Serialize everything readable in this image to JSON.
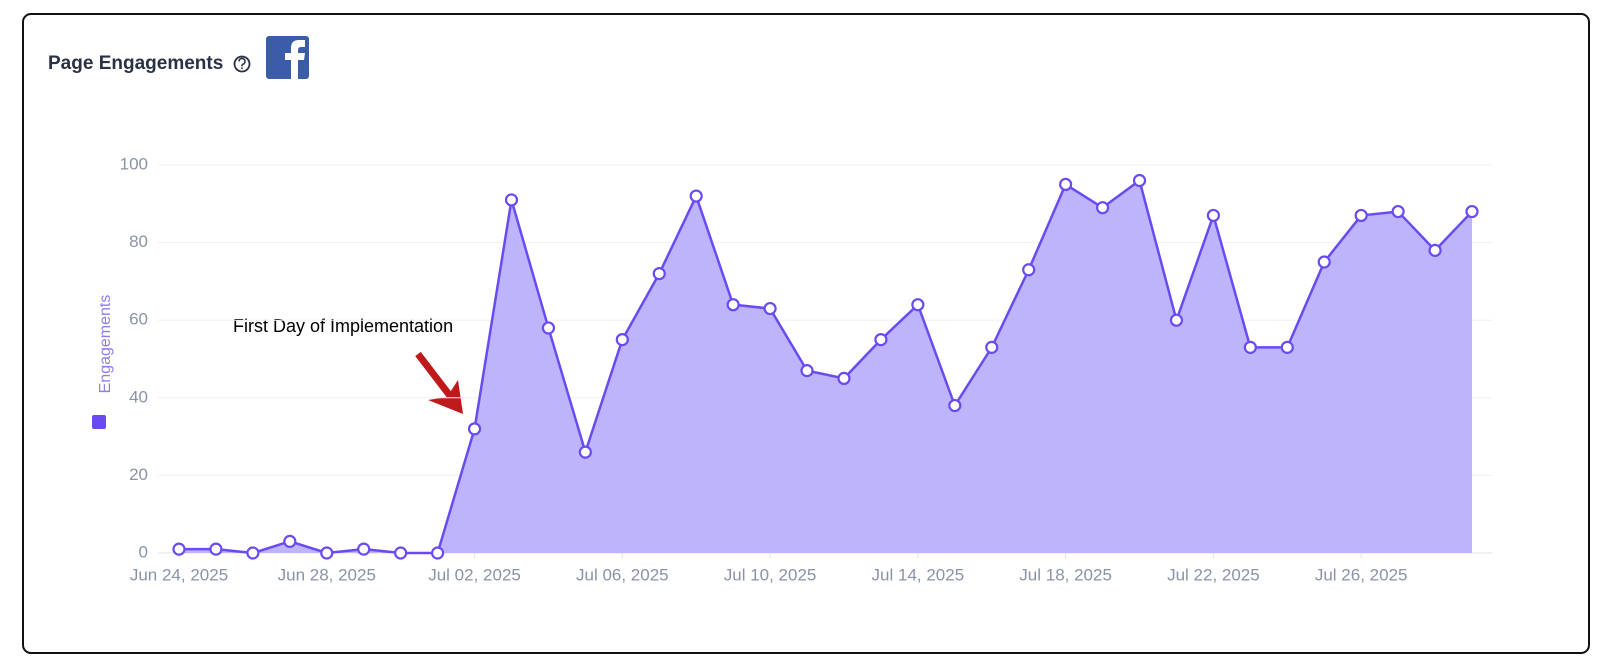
{
  "chart_data": {
    "type": "area",
    "title": "Page Engagements",
    "y_label": "Engagements",
    "annotation": "First Day of Implementation",
    "x": [
      "2025-06-24",
      "2025-06-25",
      "2025-06-26",
      "2025-06-27",
      "2025-06-28",
      "2025-06-29",
      "2025-06-30",
      "2025-07-01",
      "2025-07-02",
      "2025-07-03",
      "2025-07-04",
      "2025-07-05",
      "2025-07-06",
      "2025-07-07",
      "2025-07-08",
      "2025-07-09",
      "2025-07-10",
      "2025-07-11",
      "2025-07-12",
      "2025-07-13",
      "2025-07-14",
      "2025-07-15",
      "2025-07-16",
      "2025-07-17",
      "2025-07-18",
      "2025-07-19",
      "2025-07-20",
      "2025-07-21",
      "2025-07-22",
      "2025-07-23",
      "2025-07-24",
      "2025-07-25",
      "2025-07-26",
      "2025-07-27",
      "2025-07-28",
      "2025-07-29"
    ],
    "series": [
      {
        "name": "Engagements",
        "color": "#6a4bf2",
        "fill": "#bdb4fb",
        "values": [
          1,
          1,
          0,
          3,
          0,
          1,
          0,
          0,
          32,
          91,
          58,
          26,
          55,
          72,
          92,
          64,
          63,
          47,
          45,
          55,
          64,
          38,
          53,
          73,
          95,
          89,
          96,
          60,
          87,
          53,
          53,
          75,
          87,
          88,
          78,
          88
        ]
      }
    ],
    "xticks": [
      {
        "value": "2025-06-24",
        "label": "Jun 24, 2025"
      },
      {
        "value": "2025-06-28",
        "label": "Jun 28, 2025"
      },
      {
        "value": "2025-07-02",
        "label": "Jul 02, 2025"
      },
      {
        "value": "2025-07-06",
        "label": "Jul 06, 2025"
      },
      {
        "value": "2025-07-10",
        "label": "Jul 10, 2025"
      },
      {
        "value": "2025-07-14",
        "label": "Jul 14, 2025"
      },
      {
        "value": "2025-07-18",
        "label": "Jul 18, 2025"
      },
      {
        "value": "2025-07-22",
        "label": "Jul 22, 2025"
      },
      {
        "value": "2025-07-26",
        "label": "Jul 26, 2025"
      }
    ],
    "ylim": [
      0,
      100
    ],
    "yticks": [
      0,
      20,
      40,
      60,
      80,
      100
    ],
    "grid": true
  }
}
